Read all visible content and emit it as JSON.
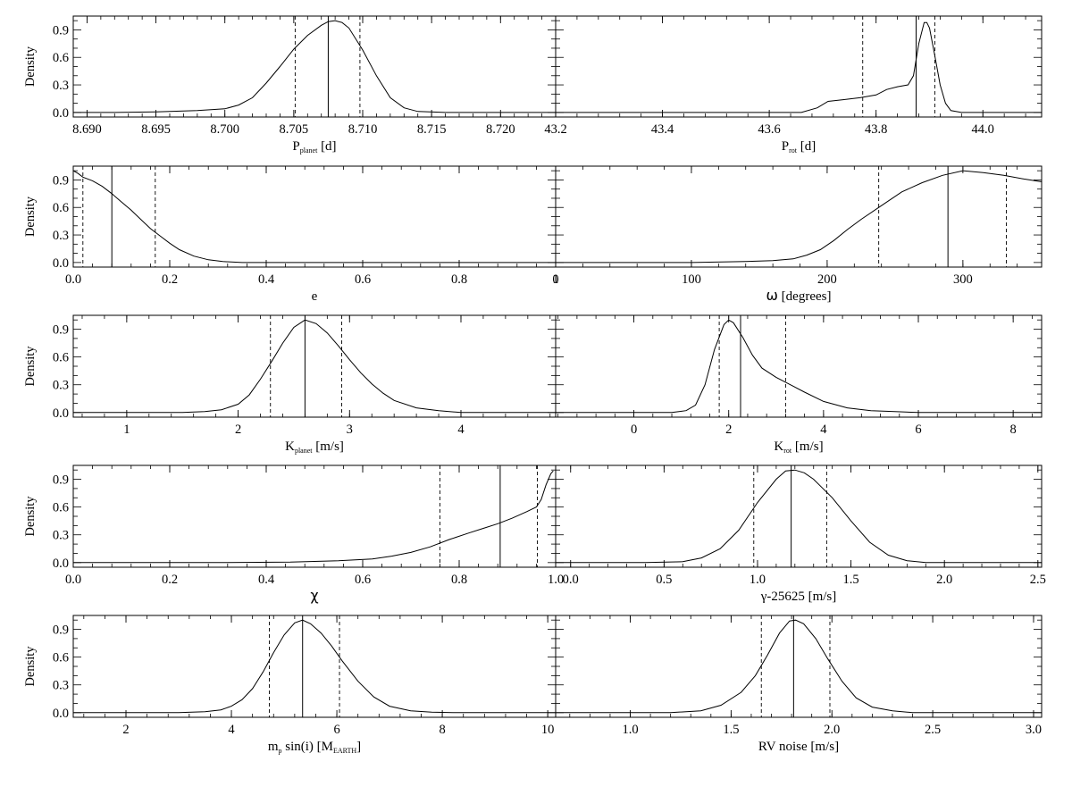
{
  "chart_data": [
    {
      "type": "line",
      "position": "row-1-left",
      "xlabel": {
        "main": "P",
        "sub": "planet",
        "unit": "[d]"
      },
      "ylabel": "Density",
      "xlim": [
        8.689,
        8.724
      ],
      "ylim": [
        -0.05,
        1.05
      ],
      "xticks": [
        8.69,
        8.695,
        8.7,
        8.705,
        8.71,
        8.715,
        8.72
      ],
      "xtick_labels": [
        "8.690",
        "8.695",
        "8.700",
        "8.705",
        "8.710",
        "8.715",
        "8.720"
      ],
      "yticks": [
        0.0,
        0.3,
        0.6,
        0.9
      ],
      "ytick_labels": [
        "0.0",
        "0.3",
        "0.6",
        "0.9"
      ],
      "median": 8.7075,
      "interval": [
        8.7051,
        8.7098
      ],
      "curve": {
        "x": [
          8.689,
          8.692,
          8.695,
          8.698,
          8.7,
          8.701,
          8.702,
          8.703,
          8.704,
          8.705,
          8.706,
          8.707,
          8.7075,
          8.708,
          8.7085,
          8.709,
          8.71,
          8.711,
          8.712,
          8.713,
          8.714,
          8.716,
          8.72,
          8.724
        ],
        "y": [
          0.0,
          0.0,
          0.005,
          0.02,
          0.04,
          0.08,
          0.16,
          0.32,
          0.5,
          0.69,
          0.84,
          0.95,
          0.99,
          1.0,
          0.98,
          0.92,
          0.68,
          0.4,
          0.16,
          0.05,
          0.01,
          0.0,
          0.0,
          0.0
        ]
      }
    },
    {
      "type": "line",
      "position": "row-1-right",
      "xlabel": {
        "main": "P",
        "sub": "rot",
        "unit": "[d]"
      },
      "ylabel": "",
      "xlim": [
        43.2,
        44.11
      ],
      "ylim": [
        -0.05,
        1.05
      ],
      "xticks": [
        43.2,
        43.4,
        43.6,
        43.8,
        44.0
      ],
      "xtick_labels": [
        "43.2",
        "43.4",
        "43.6",
        "43.8",
        "44.0"
      ],
      "yticks": [
        0.0,
        0.3,
        0.6,
        0.9
      ],
      "ytick_labels": [
        "",
        "",
        "",
        ""
      ],
      "median": 43.875,
      "interval": [
        43.775,
        43.91
      ],
      "curve": {
        "x": [
          43.2,
          43.6,
          43.66,
          43.69,
          43.71,
          43.74,
          43.77,
          43.8,
          43.82,
          43.84,
          43.86,
          43.87,
          43.88,
          43.89,
          43.895,
          43.9,
          43.91,
          43.92,
          43.93,
          43.94,
          43.96,
          44.11
        ],
        "y": [
          0.0,
          0.0,
          0.0,
          0.05,
          0.12,
          0.14,
          0.16,
          0.19,
          0.25,
          0.28,
          0.3,
          0.4,
          0.75,
          0.98,
          0.98,
          0.92,
          0.62,
          0.3,
          0.1,
          0.02,
          0.0,
          0.0
        ]
      }
    },
    {
      "type": "line",
      "position": "row-2-left",
      "xlabel": {
        "main": "e",
        "sub": "",
        "unit": ""
      },
      "ylabel": "Density",
      "xlim": [
        0.0,
        1.0
      ],
      "ylim": [
        -0.05,
        1.05
      ],
      "xticks": [
        0.0,
        0.2,
        0.4,
        0.6,
        0.8,
        1.0
      ],
      "xtick_labels": [
        "0.0",
        "0.2",
        "0.4",
        "0.6",
        "0.8",
        "1"
      ],
      "yticks": [
        0.0,
        0.3,
        0.6,
        0.9
      ],
      "ytick_labels": [
        "0.0",
        "0.3",
        "0.6",
        "0.9"
      ],
      "median": 0.08,
      "interval": [
        0.02,
        0.17
      ],
      "curve": {
        "x": [
          0.0,
          0.01,
          0.02,
          0.04,
          0.06,
          0.08,
          0.1,
          0.12,
          0.14,
          0.16,
          0.18,
          0.2,
          0.22,
          0.25,
          0.28,
          0.31,
          0.35,
          0.4,
          0.5,
          1.0
        ],
        "y": [
          1.0,
          0.97,
          0.93,
          0.89,
          0.83,
          0.75,
          0.66,
          0.57,
          0.47,
          0.37,
          0.29,
          0.21,
          0.14,
          0.07,
          0.03,
          0.01,
          0.0,
          0.0,
          0.0,
          0.0
        ]
      }
    },
    {
      "type": "line",
      "position": "row-2-right",
      "xlabel": {
        "main": "ω",
        "sub": "",
        "unit": "[degrees]"
      },
      "ylabel": "",
      "xlim": [
        0,
        358
      ],
      "ylim": [
        -0.05,
        1.05
      ],
      "xticks": [
        0,
        100,
        200,
        300
      ],
      "xtick_labels": [
        "0",
        "100",
        "200",
        "300"
      ],
      "yticks": [
        0.0,
        0.3,
        0.6,
        0.9
      ],
      "ytick_labels": [
        "",
        "",
        "",
        ""
      ],
      "median": 289,
      "interval": [
        238,
        332
      ],
      "curve": {
        "x": [
          0,
          100,
          140,
          160,
          175,
          185,
          195,
          205,
          215,
          225,
          240,
          255,
          270,
          285,
          300,
          315,
          330,
          345,
          358
        ],
        "y": [
          0.0,
          0.0,
          0.01,
          0.02,
          0.04,
          0.08,
          0.14,
          0.24,
          0.36,
          0.47,
          0.62,
          0.77,
          0.87,
          0.95,
          1.0,
          0.98,
          0.95,
          0.91,
          0.88
        ]
      }
    },
    {
      "type": "line",
      "position": "row-3-left",
      "xlabel": {
        "main": "K",
        "sub": "planet",
        "unit": "[m/s]"
      },
      "ylabel": "Density",
      "xlim": [
        0.52,
        4.85
      ],
      "ylim": [
        -0.05,
        1.05
      ],
      "xticks": [
        1,
        2,
        3,
        4
      ],
      "xtick_labels": [
        "1",
        "2",
        "3",
        "4"
      ],
      "yticks": [
        0.0,
        0.3,
        0.6,
        0.9
      ],
      "ytick_labels": [
        "0.0",
        "0.3",
        "0.6",
        "0.9"
      ],
      "median": 2.6,
      "interval": [
        2.29,
        2.93
      ],
      "curve": {
        "x": [
          0.52,
          1.5,
          1.7,
          1.85,
          2.0,
          2.1,
          2.2,
          2.3,
          2.4,
          2.5,
          2.6,
          2.7,
          2.8,
          2.9,
          3.0,
          3.1,
          3.2,
          3.3,
          3.4,
          3.6,
          3.8,
          4.0,
          4.85
        ],
        "y": [
          0.0,
          0.0,
          0.01,
          0.03,
          0.09,
          0.19,
          0.36,
          0.55,
          0.75,
          0.92,
          1.0,
          0.96,
          0.86,
          0.72,
          0.57,
          0.43,
          0.31,
          0.21,
          0.13,
          0.05,
          0.02,
          0.0,
          0.0
        ]
      }
    },
    {
      "type": "line",
      "position": "row-3-right",
      "xlabel": {
        "main": "K",
        "sub": "rot",
        "unit": "[m/s]"
      },
      "ylabel": "",
      "xlim": [
        -1.65,
        8.6
      ],
      "ylim": [
        -0.05,
        1.05
      ],
      "xticks": [
        0,
        2,
        4,
        6,
        8
      ],
      "xtick_labels": [
        "0",
        "2",
        "4",
        "6",
        "8"
      ],
      "yticks": [
        0.0,
        0.3,
        0.6,
        0.9
      ],
      "ytick_labels": [
        "",
        "",
        "",
        ""
      ],
      "median": 2.25,
      "interval": [
        1.8,
        3.2
      ],
      "curve": {
        "x": [
          -1.65,
          0.8,
          1.1,
          1.3,
          1.5,
          1.7,
          1.9,
          2.0,
          2.1,
          2.3,
          2.5,
          2.7,
          3.0,
          3.3,
          3.6,
          4.0,
          4.5,
          5.0,
          5.5,
          6.0,
          8.6
        ],
        "y": [
          0.0,
          0.0,
          0.02,
          0.08,
          0.3,
          0.68,
          0.95,
          1.0,
          0.97,
          0.81,
          0.62,
          0.48,
          0.38,
          0.3,
          0.22,
          0.12,
          0.05,
          0.02,
          0.01,
          0.0,
          0.0
        ]
      }
    },
    {
      "type": "line",
      "position": "row-4-left",
      "xlabel": {
        "main": "χ",
        "sub": "",
        "unit": ""
      },
      "ylabel": "Density",
      "xlim": [
        0.0,
        1.0
      ],
      "ylim": [
        -0.05,
        1.05
      ],
      "xticks": [
        0.0,
        0.2,
        0.4,
        0.6,
        0.8,
        1.0
      ],
      "xtick_labels": [
        "0.0",
        "0.2",
        "0.4",
        "0.6",
        "0.8",
        "1.0"
      ],
      "yticks": [
        0.0,
        0.3,
        0.6,
        0.9
      ],
      "ytick_labels": [
        "0.0",
        "0.3",
        "0.6",
        "0.9"
      ],
      "median": 0.885,
      "interval": [
        0.76,
        0.962
      ],
      "curve": {
        "x": [
          0.0,
          0.3,
          0.45,
          0.55,
          0.62,
          0.66,
          0.7,
          0.74,
          0.78,
          0.82,
          0.85,
          0.88,
          0.91,
          0.94,
          0.96,
          0.97,
          0.98,
          0.99,
          0.995
        ],
        "y": [
          0.0,
          0.0,
          0.005,
          0.02,
          0.04,
          0.07,
          0.11,
          0.17,
          0.25,
          0.32,
          0.37,
          0.42,
          0.48,
          0.55,
          0.6,
          0.68,
          0.84,
          0.96,
          0.99
        ]
      }
    },
    {
      "type": "line",
      "position": "row-4-right",
      "xlabel": {
        "main": "γ-25625",
        "sub": "",
        "unit": "[m/s]"
      },
      "ylabel": "",
      "xlim": [
        -0.08,
        2.52
      ],
      "ylim": [
        -0.05,
        1.05
      ],
      "xticks": [
        0.0,
        0.5,
        1.0,
        1.5,
        2.0,
        2.5
      ],
      "xtick_labels": [
        "0.0",
        "0.5",
        "1.0",
        "1.5",
        "2.0",
        "2.5"
      ],
      "yticks": [
        0.0,
        0.3,
        0.6,
        0.9
      ],
      "ytick_labels": [
        "",
        "",
        "",
        ""
      ],
      "median": 1.18,
      "interval": [
        0.98,
        1.37
      ],
      "curve": {
        "x": [
          -0.08,
          0.4,
          0.6,
          0.7,
          0.8,
          0.9,
          1.0,
          1.1,
          1.15,
          1.2,
          1.25,
          1.3,
          1.4,
          1.5,
          1.6,
          1.7,
          1.8,
          1.9,
          2.52
        ],
        "y": [
          0.0,
          0.0,
          0.01,
          0.05,
          0.15,
          0.35,
          0.65,
          0.9,
          0.99,
          1.0,
          0.97,
          0.9,
          0.7,
          0.45,
          0.22,
          0.08,
          0.02,
          0.0,
          0.0
        ]
      }
    },
    {
      "type": "line",
      "position": "row-5-left",
      "xlabel": {
        "main": "m",
        "sub": "p",
        "unit": "sin(i)  [M",
        "unit_sub": "EARTH",
        "unit_end": "]"
      },
      "ylabel": "Density",
      "xlim": [
        1.0,
        10.15
      ],
      "ylim": [
        -0.05,
        1.05
      ],
      "xticks": [
        2,
        4,
        6,
        8,
        10
      ],
      "xtick_labels": [
        "2",
        "4",
        "6",
        "8",
        "10"
      ],
      "yticks": [
        0.0,
        0.3,
        0.6,
        0.9
      ],
      "ytick_labels": [
        "0.0",
        "0.3",
        "0.6",
        "0.9"
      ],
      "median": 5.35,
      "interval": [
        4.72,
        6.05
      ],
      "curve": {
        "x": [
          1.0,
          3.0,
          3.5,
          3.8,
          4.0,
          4.2,
          4.4,
          4.6,
          4.8,
          5.0,
          5.2,
          5.35,
          5.5,
          5.7,
          5.9,
          6.1,
          6.4,
          6.7,
          7.0,
          7.4,
          7.8,
          8.2,
          10.15
        ],
        "y": [
          0.0,
          0.0,
          0.01,
          0.03,
          0.07,
          0.14,
          0.26,
          0.44,
          0.65,
          0.84,
          0.97,
          1.0,
          0.96,
          0.86,
          0.72,
          0.56,
          0.34,
          0.17,
          0.07,
          0.02,
          0.005,
          0.0,
          0.0
        ]
      }
    },
    {
      "type": "line",
      "position": "row-5-right",
      "xlabel": {
        "main": "RV noise",
        "sub": "",
        "unit": "[m/s]"
      },
      "ylabel": "",
      "xlim": [
        0.63,
        3.04
      ],
      "ylim": [
        -0.05,
        1.05
      ],
      "xticks": [
        1.0,
        1.5,
        2.0,
        2.5,
        3.0
      ],
      "xtick_labels": [
        "1.0",
        "1.5",
        "2.0",
        "2.5",
        "3.0"
      ],
      "yticks": [
        0.0,
        0.3,
        0.6,
        0.9
      ],
      "ytick_labels": [
        "",
        "",
        "",
        ""
      ],
      "median": 1.81,
      "interval": [
        1.65,
        1.99
      ],
      "curve": {
        "x": [
          0.63,
          1.2,
          1.35,
          1.45,
          1.55,
          1.62,
          1.68,
          1.74,
          1.79,
          1.82,
          1.86,
          1.92,
          1.98,
          2.05,
          2.12,
          2.2,
          2.3,
          2.4,
          3.04
        ],
        "y": [
          0.0,
          0.0,
          0.02,
          0.08,
          0.22,
          0.4,
          0.62,
          0.86,
          0.99,
          1.0,
          0.96,
          0.8,
          0.58,
          0.34,
          0.16,
          0.06,
          0.02,
          0.0,
          0.0
        ]
      }
    }
  ]
}
